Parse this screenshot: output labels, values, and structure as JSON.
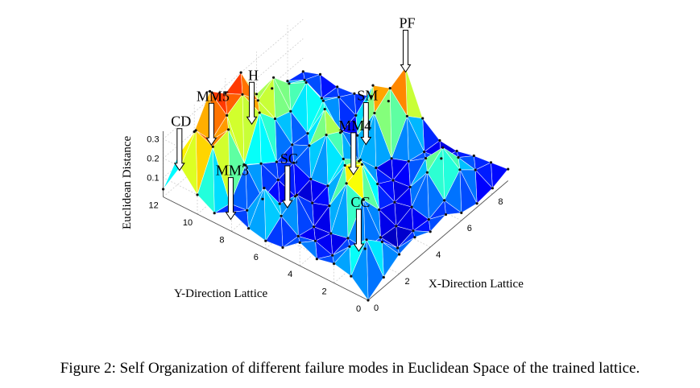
{
  "caption": "Figure 2: Self Organization of different failure modes in Euclidean Space of the trained lattice.",
  "chart_data": {
    "type": "surface",
    "xlabel": "X-Direction Lattice",
    "ylabel": "Y-Direction Lattice",
    "zlabel": "Euclidean Distance",
    "x_ticks": [
      "0",
      "2",
      "4",
      "6",
      "8"
    ],
    "y_ticks": [
      "0",
      "2",
      "4",
      "6",
      "8",
      "10",
      "12"
    ],
    "z_ticks": [
      "0.1",
      "0.2",
      "0.3"
    ],
    "xlim": [
      0,
      9
    ],
    "ylim": [
      0,
      12
    ],
    "zlim": [
      0,
      0.35
    ],
    "grid": true,
    "colormap": "jet",
    "failure_modes": [
      {
        "label": "MM5",
        "x": 2,
        "y": 11
      },
      {
        "label": "H",
        "x": 3.5,
        "y": 10
      },
      {
        "label": "CD",
        "x": 0.5,
        "y": 11.5
      },
      {
        "label": "SM",
        "x": 7,
        "y": 6.5
      },
      {
        "label": "PF",
        "x": 9,
        "y": 6
      },
      {
        "label": "MM3",
        "x": 0.5,
        "y": 8.5
      },
      {
        "label": "SC",
        "x": 2.5,
        "y": 7
      },
      {
        "label": "MM4",
        "x": 4,
        "y": 4.5
      },
      {
        "label": "CC",
        "x": 0.5,
        "y": 1
      }
    ],
    "z_values": [
      [
        0.0,
        0.05,
        0.1,
        0.12,
        0.08,
        0.1,
        0.04,
        0.02,
        0.03,
        0.06
      ],
      [
        0.08,
        0.2,
        0.12,
        0.02,
        0.04,
        0.03,
        0.06,
        0.15,
        0.08,
        0.05
      ],
      [
        0.1,
        0.12,
        0.04,
        0.03,
        0.02,
        0.05,
        0.16,
        0.22,
        0.1,
        0.04
      ],
      [
        0.08,
        0.03,
        0.05,
        0.18,
        0.06,
        0.03,
        0.04,
        0.12,
        0.05,
        0.02
      ],
      [
        0.12,
        0.06,
        0.03,
        0.22,
        0.25,
        0.08,
        0.03,
        0.06,
        0.04,
        0.03
      ],
      [
        0.05,
        0.04,
        0.02,
        0.06,
        0.2,
        0.16,
        0.05,
        0.03,
        0.18,
        0.1
      ],
      [
        0.04,
        0.1,
        0.14,
        0.03,
        0.05,
        0.12,
        0.04,
        0.22,
        0.28,
        0.32
      ],
      [
        0.06,
        0.2,
        0.05,
        0.02,
        0.04,
        0.2,
        0.15,
        0.06,
        0.25,
        0.1
      ],
      [
        0.1,
        0.04,
        0.03,
        0.06,
        0.08,
        0.1,
        0.22,
        0.03,
        0.05,
        0.08
      ],
      [
        0.05,
        0.03,
        0.16,
        0.1,
        0.04,
        0.06,
        0.05,
        0.15,
        0.1,
        0.05
      ],
      [
        0.1,
        0.28,
        0.3,
        0.05,
        0.25,
        0.15,
        0.12,
        0.2,
        0.05,
        0.04
      ],
      [
        0.2,
        0.32,
        0.2,
        0.26,
        0.3,
        0.2,
        0.25,
        0.15,
        0.1,
        0.06
      ],
      [
        0.04,
        0.15,
        0.2,
        0.34,
        0.26,
        0.3,
        0.12,
        0.08,
        0.05,
        0.03
      ]
    ]
  }
}
